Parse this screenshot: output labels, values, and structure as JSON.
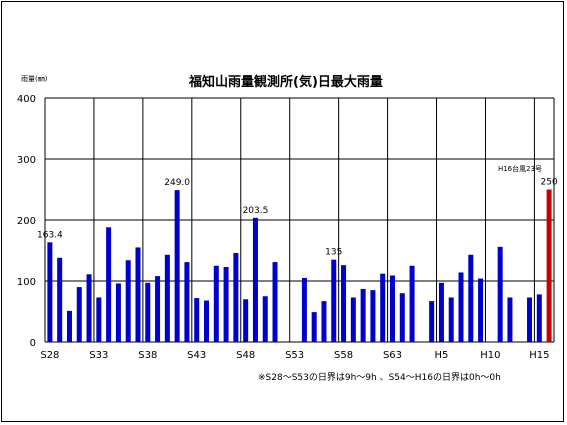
{
  "chart_data": {
    "type": "bar",
    "title": "福知山雨量観測所(気)日最大雨量",
    "ylabel": "雨量(㎜)",
    "ylim": [
      0,
      400
    ],
    "yticks": [
      0,
      100,
      200,
      300,
      400
    ],
    "grid": true,
    "x": [
      "S28",
      "S29",
      "S30",
      "S31",
      "S32",
      "S33",
      "S34",
      "S35",
      "S36",
      "S37",
      "S38",
      "S39",
      "S40",
      "S41",
      "S42",
      "S43",
      "S44",
      "S45",
      "S46",
      "S47",
      "S48",
      "S49",
      "S50",
      "S51",
      "S52",
      "S53",
      "S54",
      "S55",
      "S56",
      "S57",
      "S58",
      "S59",
      "S60",
      "S61",
      "S62",
      "S63",
      "H1",
      "H2",
      "H3",
      "H4",
      "H5",
      "H6",
      "H7",
      "H8",
      "H9",
      "H10",
      "H11",
      "H12",
      "H13",
      "H14",
      "H15",
      "H16"
    ],
    "xtick_labels": [
      "S28",
      "S33",
      "S38",
      "S43",
      "S48",
      "S53",
      "S58",
      "S63",
      "H5",
      "H10",
      "H15"
    ],
    "values": [
      163.4,
      138,
      51,
      90,
      111,
      73,
      188,
      96,
      134,
      155,
      97,
      108,
      143,
      249.0,
      131,
      72,
      68,
      125,
      123,
      146,
      70,
      203.5,
      75,
      131,
      null,
      null,
      105,
      49,
      67,
      135,
      126,
      73,
      87,
      85,
      112,
      109,
      80,
      125,
      null,
      67,
      97,
      73,
      114,
      143,
      104,
      null,
      156,
      73,
      null,
      73,
      78,
      250
    ],
    "colors": {
      "bar": "#0000cc",
      "highlight": "#cc0000"
    },
    "data_labels": [
      {
        "x": "S28",
        "text": "163.4"
      },
      {
        "x": "S41",
        "text": "249.0"
      },
      {
        "x": "S49",
        "text": "203.5"
      },
      {
        "x": "S57",
        "text": "135"
      },
      {
        "x": "H16",
        "text": "250"
      }
    ],
    "annotations": {
      "typhoon": "H16台風23号",
      "footnote": "※S28～S53の日界は9h～9h 、S54～H16の日界は0h～0h"
    }
  }
}
